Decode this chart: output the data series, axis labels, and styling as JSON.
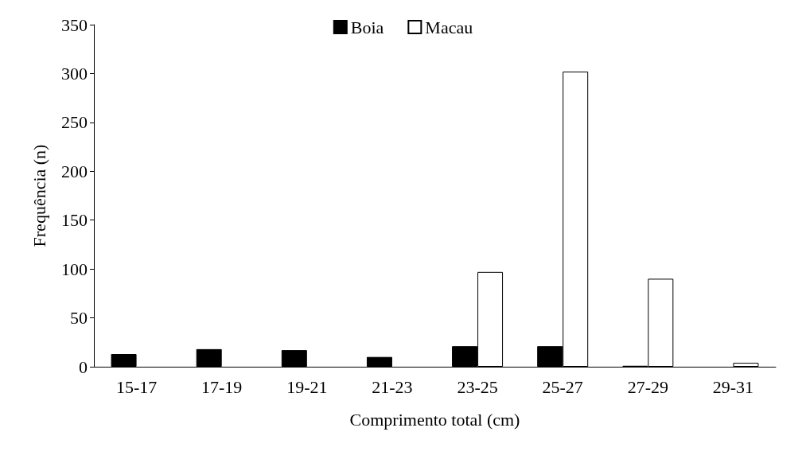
{
  "chart_data": {
    "type": "bar",
    "xlabel": "Comprimento total (cm)",
    "ylabel": "Frequência (n)",
    "categories": [
      "15-17",
      "17-19",
      "19-21",
      "21-23",
      "23-25",
      "25-27",
      "27-29",
      "29-31"
    ],
    "series": [
      {
        "name": "Boia",
        "color": "#000000",
        "values": [
          13,
          18,
          17,
          10,
          21,
          21,
          1,
          null
        ]
      },
      {
        "name": "Macau",
        "color": "#ffffff",
        "values": [
          null,
          null,
          null,
          null,
          97,
          302,
          90,
          4
        ]
      }
    ],
    "ylim": [
      0,
      350
    ],
    "yticks": [
      0,
      50,
      100,
      150,
      200,
      250,
      300,
      350
    ],
    "grid": false,
    "legend": "top"
  }
}
